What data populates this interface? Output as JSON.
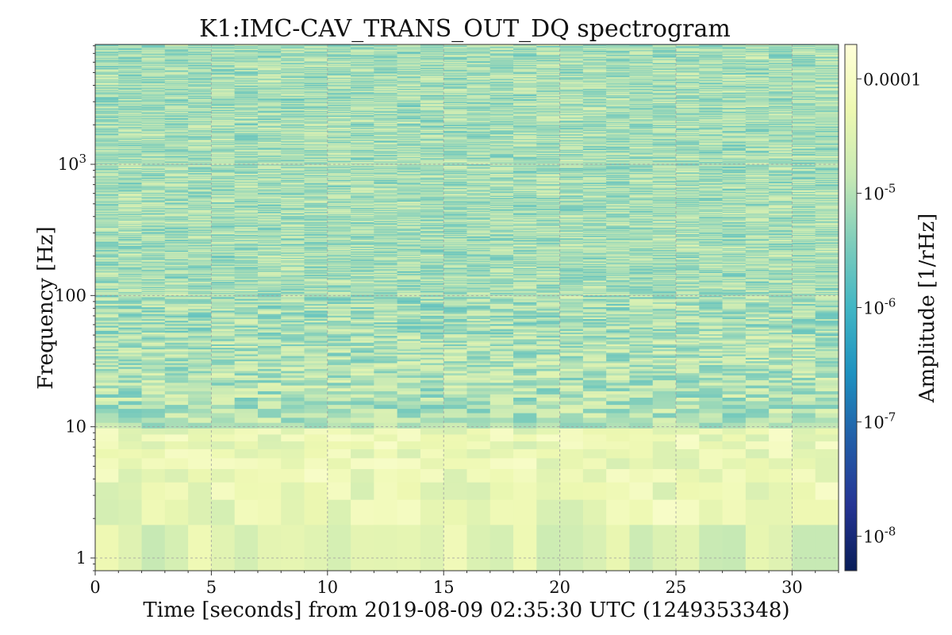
{
  "chart_data": {
    "type": "heatmap",
    "title": "K1:IMC-CAV_TRANS_OUT_DQ spectrogram",
    "xlabel": "Time [seconds] from 2019-08-09 02:35:30 UTC (1249353348)",
    "ylabel": "Frequency [Hz]",
    "x_range": [
      0,
      32
    ],
    "y_range": [
      0.8,
      8192
    ],
    "y_scale": "log",
    "x_ticks": [
      0,
      5,
      10,
      15,
      20,
      25,
      30
    ],
    "x_tick_labels": [
      "0",
      "5",
      "10",
      "15",
      "20",
      "25",
      "30"
    ],
    "y_ticks": [
      1,
      10,
      100,
      1000
    ],
    "y_tick_labels": [
      "1",
      "10",
      "100",
      "10^3"
    ],
    "grid": true,
    "colorbar": {
      "label": "Amplitude [1/rHz]",
      "scale": "log",
      "range": [
        5e-09,
        0.0002
      ],
      "colormap": "YlGnBu_r",
      "ticks": [
        1e-08,
        1e-07,
        1e-06,
        1e-05,
        0.0001
      ],
      "tick_labels": [
        "10^-8",
        "10^-7",
        "10^-6",
        "10^-5",
        "0.0001"
      ]
    },
    "time_bins": 32,
    "description_levels": {
      "below_1_5_Hz": 3e-05,
      "1_5_to_10_Hz": 5e-05,
      "10_to_50_Hz": 1e-05,
      "above_50_Hz": 8e-06
    }
  }
}
